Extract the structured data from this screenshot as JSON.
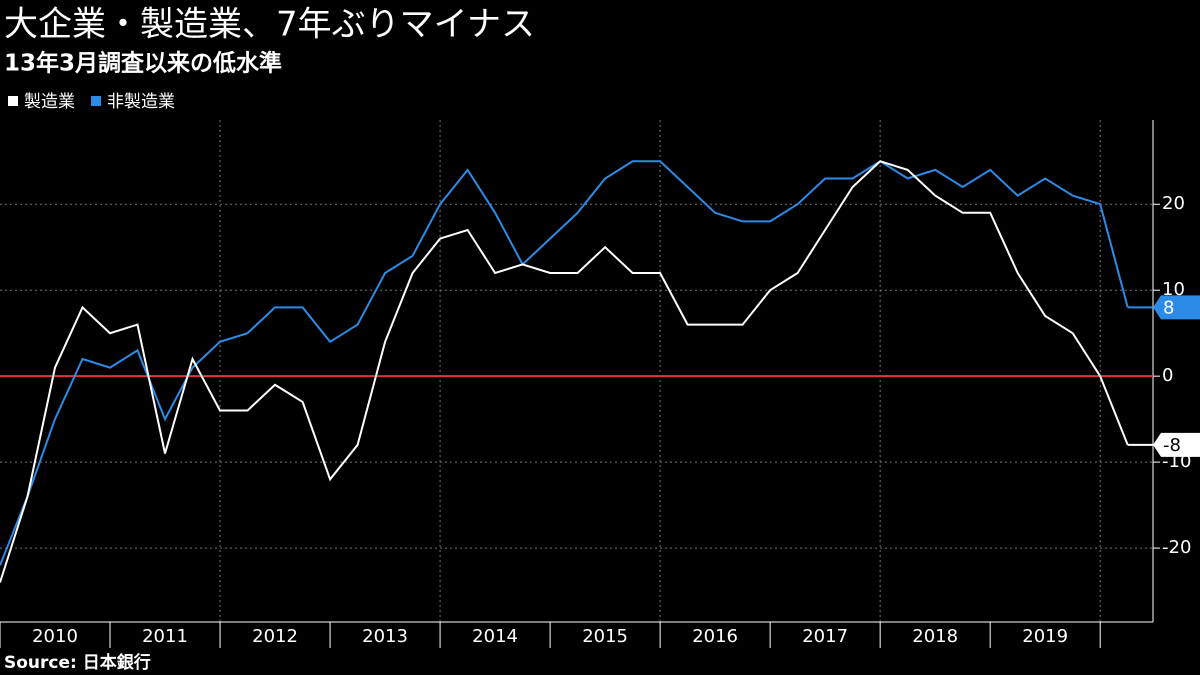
{
  "chart_data": {
    "type": "line",
    "title": "大企業・製造業、7年ぶりマイナス",
    "subtitle": "13年3月調査以来の低水準",
    "source": "Source: 日本銀行",
    "x": [
      2010,
      2010.25,
      2010.5,
      2010.75,
      2011,
      2011.25,
      2011.5,
      2011.75,
      2012,
      2012.25,
      2012.5,
      2012.75,
      2013,
      2013.25,
      2013.5,
      2013.75,
      2014,
      2014.25,
      2014.5,
      2014.75,
      2015,
      2015.25,
      2015.5,
      2015.75,
      2016,
      2016.25,
      2016.5,
      2016.75,
      2017,
      2017.25,
      2017.5,
      2017.75,
      2018,
      2018.25,
      2018.5,
      2018.75,
      2019,
      2019.25,
      2019.5,
      2019.75,
      2020,
      2020.25
    ],
    "series": [
      {
        "name": "製造業",
        "color": "#ffffff",
        "values": [
          -24,
          -14,
          1,
          8,
          5,
          6,
          -9,
          2,
          -4,
          -4,
          -1,
          -3,
          -12,
          -8,
          4,
          12,
          16,
          17,
          12,
          13,
          12,
          12,
          15,
          12,
          12,
          6,
          6,
          6,
          10,
          12,
          17,
          22,
          25,
          24,
          21,
          19,
          19,
          12,
          7,
          5,
          0,
          -8
        ]
      },
      {
        "name": "非製造業",
        "color": "#2b8be6",
        "values": [
          -22,
          -14,
          -5,
          2,
          1,
          3,
          -5,
          1,
          4,
          5,
          8,
          8,
          4,
          6,
          12,
          14,
          20,
          24,
          19,
          13,
          16,
          19,
          23,
          25,
          25,
          22,
          19,
          18,
          18,
          20,
          23,
          23,
          25,
          23,
          24,
          22,
          24,
          21,
          23,
          21,
          20,
          8
        ]
      }
    ],
    "xlim": [
      2010,
      2020.48
    ],
    "xticks": [
      {
        "value": 2010.5,
        "label": "2010"
      },
      {
        "value": 2011.5,
        "label": "2011"
      },
      {
        "value": 2012.5,
        "label": "2012"
      },
      {
        "value": 2013.5,
        "label": "2013"
      },
      {
        "value": 2014.5,
        "label": "2014"
      },
      {
        "value": 2015.5,
        "label": "2015"
      },
      {
        "value": 2016.5,
        "label": "2016"
      },
      {
        "value": 2017.5,
        "label": "2017"
      },
      {
        "value": 2018.5,
        "label": "2018"
      },
      {
        "value": 2019.5,
        "label": "2019"
      }
    ],
    "ylim": [
      -28.6,
      29.8
    ],
    "yticks": [
      -20,
      -10,
      0,
      10,
      20
    ],
    "zero_line_color": "#e8333b",
    "grid": true
  }
}
